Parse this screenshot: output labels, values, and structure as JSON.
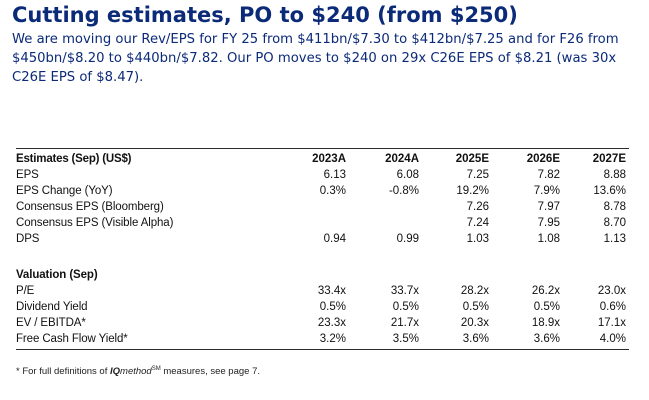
{
  "headline": "Cutting estimates, PO to $240 (from $250)",
  "intro": "We are moving our Rev/EPS for FY 25 from $411bn/$7.30 to $412bn/$7.25 and for F26 from $450bn/$8.20 to $440bn/$7.82. Our PO moves to $240 on 29x C26E EPS of $8.21 (was 30x C26E EPS of $8.47).",
  "estimates": {
    "header": "Estimates (Sep) (US$)",
    "years": [
      "2023A",
      "2024A",
      "2025E",
      "2026E",
      "2027E"
    ],
    "rows": [
      {
        "label": "EPS",
        "values": [
          "6.13",
          "6.08",
          "7.25",
          "7.82",
          "8.88"
        ]
      },
      {
        "label": "EPS Change (YoY)",
        "values": [
          "0.3%",
          "-0.8%",
          "19.2%",
          "7.9%",
          "13.6%"
        ]
      },
      {
        "label": "Consensus EPS (Bloomberg)",
        "values": [
          "",
          "",
          "7.26",
          "7.97",
          "8.78"
        ]
      },
      {
        "label": "Consensus EPS (Visible Alpha)",
        "values": [
          "",
          "",
          "7.24",
          "7.95",
          "8.70"
        ]
      },
      {
        "label": "DPS",
        "values": [
          "0.94",
          "0.99",
          "1.03",
          "1.08",
          "1.13"
        ]
      }
    ]
  },
  "valuation": {
    "header": "Valuation (Sep)",
    "rows": [
      {
        "label": "P/E",
        "values": [
          "33.4x",
          "33.7x",
          "28.2x",
          "26.2x",
          "23.0x"
        ]
      },
      {
        "label": "Dividend Yield",
        "values": [
          "0.5%",
          "0.5%",
          "0.5%",
          "0.5%",
          "0.6%"
        ]
      },
      {
        "label": "EV / EBITDA*",
        "values": [
          "23.3x",
          "21.7x",
          "20.3x",
          "18.9x",
          "17.1x"
        ]
      },
      {
        "label": "Free Cash Flow Yield*",
        "values": [
          "3.2%",
          "3.5%",
          "3.6%",
          "3.6%",
          "4.0%"
        ]
      }
    ]
  },
  "footnote": {
    "prefix": "* For full definitions of ",
    "brand_iq": "IQ",
    "brand_rest": "method",
    "brand_mark": "SM",
    "suffix": " measures, see page 7."
  },
  "colors": {
    "headline": "#0b2a78",
    "rule": "#2b2b2b"
  }
}
